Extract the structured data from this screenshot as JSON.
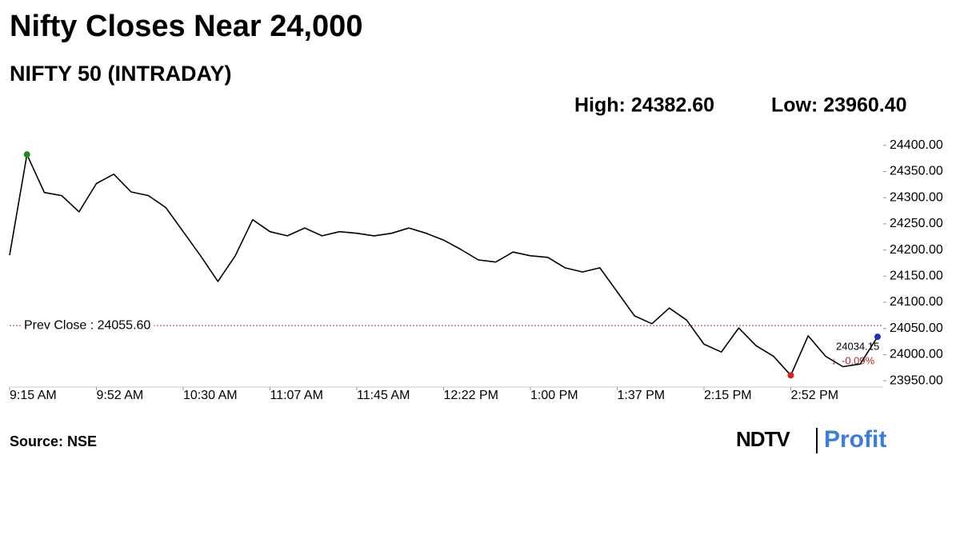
{
  "chart_data": {
    "type": "line",
    "title": "Nifty Closes Near 24,000",
    "subtitle": "NIFTY 50 (INTRADAY)",
    "high_label": "High: 24382.60",
    "low_label": "Low: 23960.40",
    "source": "Source: NSE",
    "brand": {
      "name": "NDTV",
      "product": "Profit"
    },
    "color": "#000000",
    "x": [
      "9:15 AM",
      "9:22 AM",
      "9:30 AM",
      "9:37 AM",
      "9:45 AM",
      "9:52 AM",
      "10:00 AM",
      "10:07 AM",
      "10:15 AM",
      "10:22 AM",
      "10:30 AM",
      "10:37 AM",
      "10:45 AM",
      "10:52 AM",
      "11:00 AM",
      "11:07 AM",
      "11:15 AM",
      "11:22 AM",
      "11:30 AM",
      "11:37 AM",
      "11:45 AM",
      "11:52 AM",
      "12:00 PM",
      "12:07 PM",
      "12:15 PM",
      "12:22 PM",
      "12:30 PM",
      "12:37 PM",
      "12:45 PM",
      "12:52 PM",
      "1:00 PM",
      "1:07 PM",
      "1:15 PM",
      "1:22 PM",
      "1:30 PM",
      "1:37 PM",
      "1:45 PM",
      "1:52 PM",
      "2:00 PM",
      "2:07 PM",
      "2:15 PM",
      "2:22 PM",
      "2:30 PM",
      "2:37 PM",
      "2:45 PM",
      "2:52 PM",
      "3:00 PM",
      "3:07 PM",
      "3:15 PM",
      "3:22 PM",
      "3:30 PM"
    ],
    "values": [
      24190,
      24382.6,
      24310,
      24304,
      24273,
      24327,
      24345,
      24311,
      24304,
      24281,
      24235,
      24189,
      24140,
      24189,
      24258,
      24235,
      24227,
      24242,
      24227,
      24235,
      24232,
      24227,
      24232,
      24242,
      24232,
      24219,
      24201,
      24181,
      24177,
      24196,
      24189,
      24186,
      24166,
      24158,
      24166,
      24120,
      24074,
      24059,
      24089,
      24066,
      24020,
      24005,
      24051,
      24017,
      23997,
      23960.4,
      24036,
      23997,
      23977,
      23982,
      24034.15
    ],
    "markers": [
      {
        "index": 1,
        "color": "#1a8a1a"
      },
      {
        "index": 45,
        "color": "#e02020"
      },
      {
        "index": 50,
        "color": "#2030c0"
      }
    ],
    "change_label": "-0.09%",
    "prev_close": {
      "value": 24055.6,
      "label": "Prev Close : 24055.60",
      "color": "#b03030"
    },
    "ylim": [
      23938,
      24418
    ],
    "yticks": [
      {
        "value": 23950,
        "label": "23950.00"
      },
      {
        "value": 24000,
        "label": "24000.00"
      },
      {
        "value": 24050,
        "label": "24050.00"
      },
      {
        "value": 24100,
        "label": "24100.00"
      },
      {
        "value": 24150,
        "label": "24150.00"
      },
      {
        "value": 24200,
        "label": "24200.00"
      },
      {
        "value": 24250,
        "label": "24250.00"
      },
      {
        "value": 24300,
        "label": "24300.00"
      },
      {
        "value": 24350,
        "label": "24350.00"
      },
      {
        "value": 24400,
        "label": "24400.00"
      }
    ],
    "xticks": [
      "9:15 AM",
      "9:52 AM",
      "10:30 AM",
      "11:07 AM",
      "11:45 AM",
      "12:22 PM",
      "1:00 PM",
      "1:37 PM",
      "2:15 PM",
      "2:52 PM"
    ]
  }
}
